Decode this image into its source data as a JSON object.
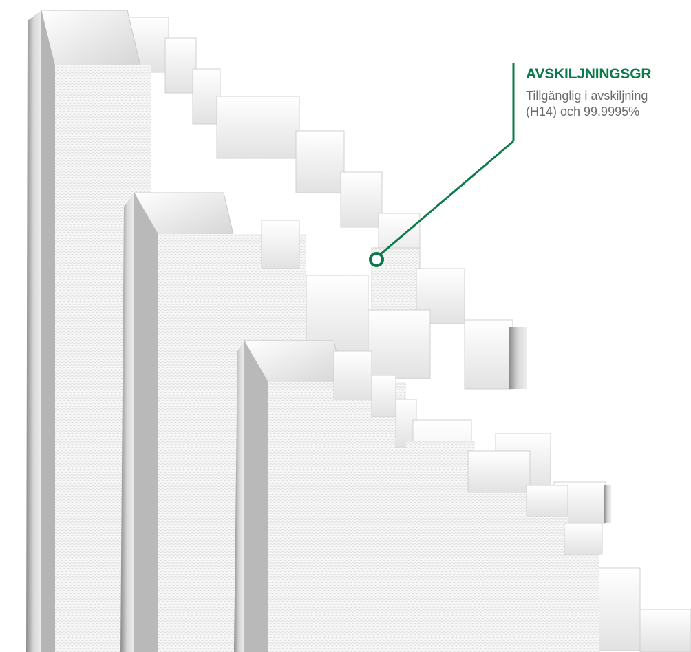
{
  "annotation": {
    "title": "AVSKILJNINGSGR",
    "line1": "Tillgänglig i avskiljning",
    "line2": "(H14) och 99.9995%"
  },
  "colors": {
    "accent": "#0a7a4a",
    "body_text": "#6b6b6b",
    "filter_face": "#f2f2f2",
    "filter_shadow": "#c9c9c9"
  }
}
